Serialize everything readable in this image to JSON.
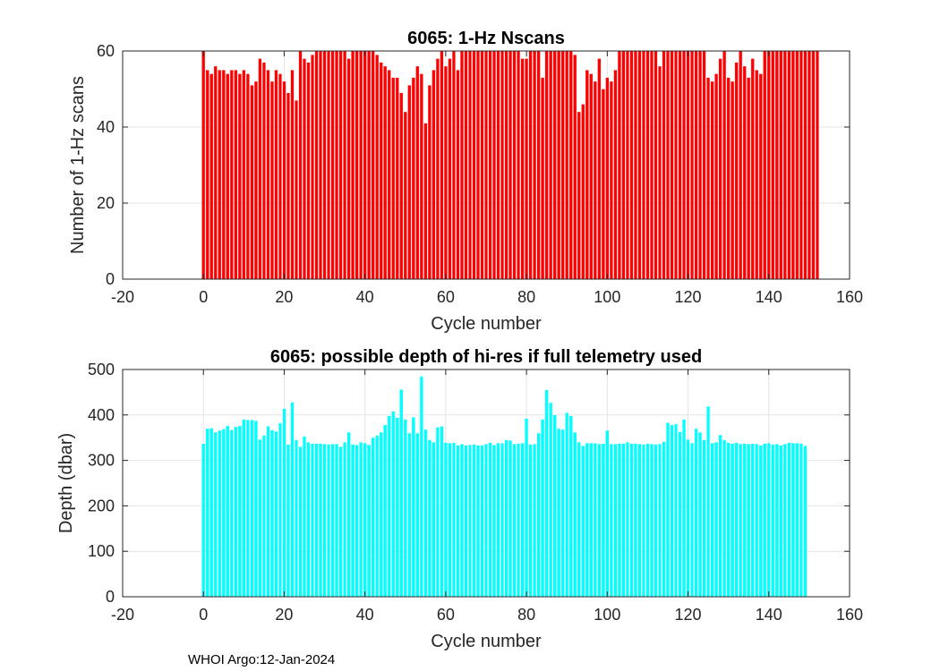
{
  "footer": "WHOI Argo:12-Jan-2024",
  "chart_data": [
    {
      "type": "bar",
      "title": "6065: 1-Hz Nscans",
      "xlabel": "Cycle number",
      "ylabel": "Number of 1-Hz scans",
      "xlim": [
        -20,
        160
      ],
      "ylim": [
        0,
        60
      ],
      "xticks": [
        -20,
        0,
        20,
        40,
        60,
        80,
        100,
        120,
        140,
        160
      ],
      "yticks": [
        0,
        20,
        40,
        60
      ],
      "grid": true,
      "color": "#ff0000",
      "x_start": 0,
      "values": [
        60,
        55,
        54,
        56,
        55,
        55,
        54,
        55,
        55,
        54,
        55,
        54,
        51,
        52,
        58,
        57,
        55,
        52,
        55,
        54,
        52,
        49,
        55,
        47,
        60,
        58,
        57,
        59,
        60,
        60,
        60,
        60,
        60,
        60,
        60,
        60,
        58,
        60,
        60,
        60,
        60,
        60,
        60,
        59,
        57,
        56,
        55,
        53,
        53,
        49,
        44,
        51,
        53,
        56,
        54,
        41,
        51,
        55,
        58,
        60,
        56,
        58,
        60,
        55,
        60,
        60,
        60,
        60,
        60,
        60,
        60,
        60,
        60,
        60,
        60,
        60,
        60,
        60,
        60,
        58,
        58,
        60,
        60,
        60,
        53,
        60,
        60,
        60,
        60,
        60,
        60,
        60,
        59,
        44,
        46,
        55,
        54,
        52,
        58,
        50,
        53,
        52,
        55,
        60,
        60,
        60,
        60,
        60,
        60,
        60,
        60,
        60,
        60,
        56,
        60,
        60,
        60,
        60,
        60,
        60,
        60,
        60,
        60,
        60,
        60,
        53,
        52,
        54,
        58,
        60,
        53,
        52,
        57,
        60,
        56,
        53,
        58,
        55,
        54,
        60,
        60,
        60,
        60,
        60,
        60,
        60,
        60,
        60,
        60,
        60,
        60,
        60,
        60
      ]
    },
    {
      "type": "bar",
      "title": "6065: possible depth of hi-res if full telemetry used",
      "xlabel": "Cycle number",
      "ylabel": "Depth (dbar)",
      "xlim": [
        -20,
        160
      ],
      "ylim": [
        0,
        500
      ],
      "xticks": [
        -20,
        0,
        20,
        40,
        60,
        80,
        100,
        120,
        140,
        160
      ],
      "yticks": [
        0,
        100,
        200,
        300,
        400,
        500
      ],
      "grid": true,
      "color": "#00ffff",
      "x_start": 0,
      "values": [
        337,
        370,
        371,
        362,
        366,
        369,
        376,
        367,
        374,
        376,
        390,
        389,
        389,
        387,
        346,
        355,
        375,
        367,
        364,
        382,
        414,
        335,
        428,
        345,
        330,
        353,
        340,
        337,
        337,
        337,
        336,
        335,
        336,
        336,
        330,
        340,
        362,
        335,
        334,
        340,
        338,
        334,
        350,
        355,
        362,
        378,
        398,
        408,
        394,
        456,
        390,
        360,
        395,
        360,
        485,
        368,
        345,
        340,
        373,
        375,
        339,
        338,
        339,
        333,
        336,
        333,
        334,
        335,
        333,
        333,
        336,
        339,
        334,
        338,
        338,
        345,
        344,
        336,
        337,
        338,
        392,
        335,
        336,
        360,
        390,
        455,
        427,
        400,
        370,
        368,
        405,
        398,
        362,
        340,
        332,
        338,
        338,
        338,
        336,
        337,
        366,
        336,
        336,
        337,
        337,
        340,
        337,
        337,
        336,
        335,
        337,
        336,
        335,
        336,
        341,
        383,
        378,
        380,
        363,
        390,
        346,
        338,
        370,
        362,
        345,
        419,
        338,
        340,
        356,
        345,
        339,
        337,
        339,
        336,
        337,
        336,
        337,
        336,
        333,
        337,
        338,
        335,
        336,
        333,
        336,
        339,
        338,
        338,
        337,
        332
      ]
    }
  ]
}
